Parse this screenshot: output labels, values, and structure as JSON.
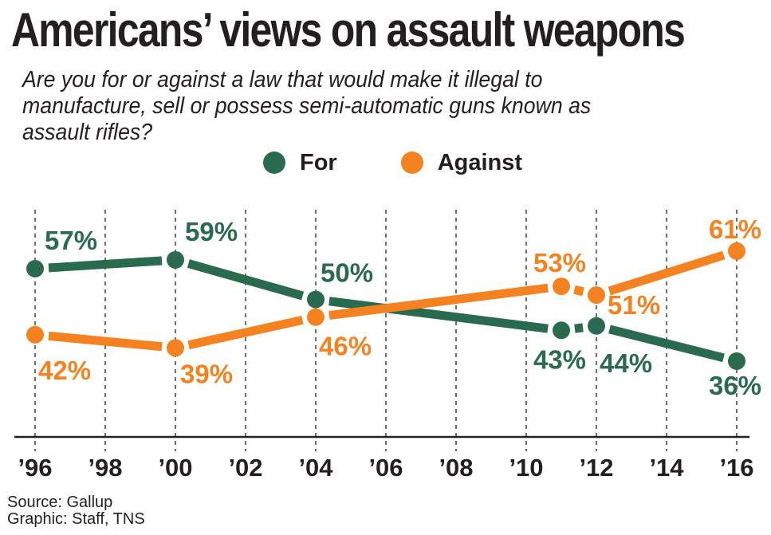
{
  "title": "Americans’ views on assault weapons",
  "subtitle": "Are you for or against a law that would make it illegal to manufacture, sell or possess semi-automatic guns known as assault rifles?",
  "footer": {
    "source": "Source: Gallup",
    "graphic": "Graphic: Staff, TNS"
  },
  "chart_data": {
    "type": "line",
    "title": "Americans’ views on assault weapons",
    "subtitle": "Are you for or against a law that would make it illegal to manufacture, sell or possess semi-automatic guns known as assault rifles?",
    "xlabel": "",
    "ylabel": "",
    "x_ticks": [
      1996,
      1998,
      2000,
      2002,
      2004,
      2006,
      2008,
      2010,
      2012,
      2014,
      2016
    ],
    "x_tick_labels": [
      "’96",
      "’98",
      "’00",
      "’02",
      "’04",
      "’06",
      "’08",
      "’10",
      "’12",
      "’14",
      "’16"
    ],
    "xlim": [
      1996,
      2016
    ],
    "grid": "vertical dashed",
    "legend_position": "top-center",
    "series": [
      {
        "name": "For",
        "color": "#2a6b4f",
        "points": [
          {
            "x": 1996,
            "y": 57,
            "label": "57%"
          },
          {
            "x": 2000,
            "y": 59,
            "label": "59%"
          },
          {
            "x": 2004,
            "y": 50,
            "label": "50%"
          },
          {
            "x": 2011,
            "y": 43,
            "label": "43%"
          },
          {
            "x": 2012,
            "y": 44,
            "label": "44%"
          },
          {
            "x": 2016,
            "y": 36,
            "label": "36%"
          }
        ]
      },
      {
        "name": "Against",
        "color": "#f58220",
        "points": [
          {
            "x": 1996,
            "y": 42,
            "label": "42%"
          },
          {
            "x": 2000,
            "y": 39,
            "label": "39%"
          },
          {
            "x": 2004,
            "y": 46,
            "label": "46%"
          },
          {
            "x": 2011,
            "y": 53,
            "label": "53%"
          },
          {
            "x": 2012,
            "y": 51,
            "label": "51%"
          },
          {
            "x": 2016,
            "y": 61,
            "label": "61%"
          }
        ]
      }
    ]
  }
}
